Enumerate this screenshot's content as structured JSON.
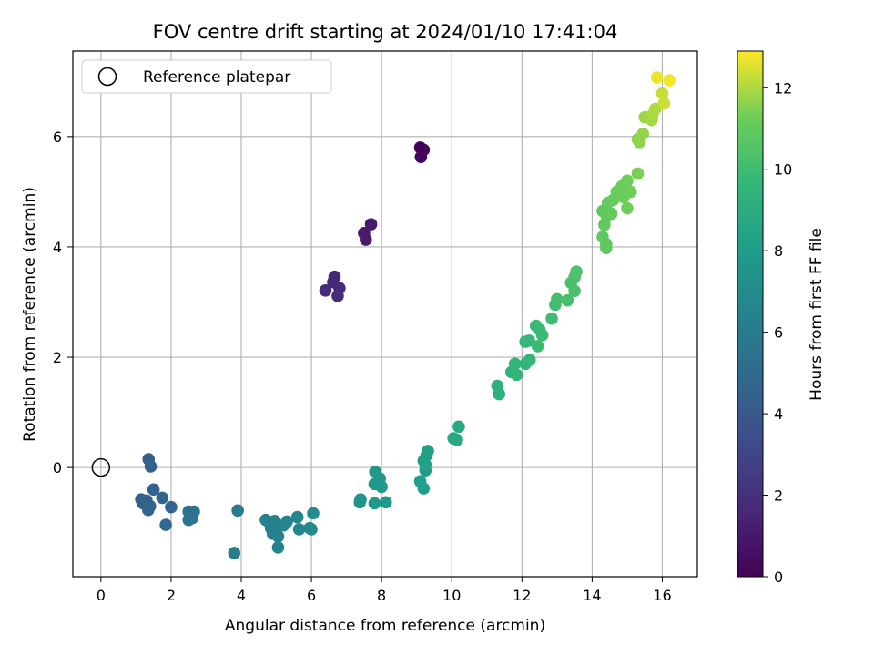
{
  "chart_data": {
    "type": "scatter",
    "title": "FOV centre drift starting at 2024/01/10 17:41:04",
    "xlabel": "Angular distance from reference (arcmin)",
    "ylabel": "Rotation from reference (arcmin)",
    "xlim": [
      -0.8,
      17.0
    ],
    "ylim": [
      -1.98,
      7.55
    ],
    "xticks": [
      0,
      2,
      4,
      6,
      8,
      10,
      12,
      14,
      16
    ],
    "yticks": [
      0,
      2,
      4,
      6
    ],
    "grid": true,
    "legend": {
      "placement": "upper-left",
      "entries": [
        "Reference platepar"
      ]
    },
    "reference_point": {
      "x": 0,
      "y": 0,
      "label": "Reference platepar"
    },
    "colorbar": {
      "label": "Hours from first FF file",
      "colormap": "viridis",
      "range": [
        0,
        12.9
      ],
      "ticks": [
        0,
        2,
        4,
        6,
        8,
        10,
        12
      ]
    },
    "points": [
      {
        "x": 9.1,
        "y": 5.8,
        "c": 0.1
      },
      {
        "x": 9.2,
        "y": 5.76,
        "c": 0.15
      },
      {
        "x": 9.12,
        "y": 5.63,
        "c": 0.2
      },
      {
        "x": 7.7,
        "y": 4.41,
        "c": 1.0
      },
      {
        "x": 7.5,
        "y": 4.25,
        "c": 1.05
      },
      {
        "x": 7.55,
        "y": 4.13,
        "c": 1.1
      },
      {
        "x": 6.66,
        "y": 3.46,
        "c": 1.6
      },
      {
        "x": 6.62,
        "y": 3.36,
        "c": 1.65
      },
      {
        "x": 6.8,
        "y": 3.25,
        "c": 1.7
      },
      {
        "x": 6.4,
        "y": 3.21,
        "c": 1.75
      },
      {
        "x": 6.75,
        "y": 3.11,
        "c": 1.8
      },
      {
        "x": 1.36,
        "y": 0.15,
        "c": 4.3
      },
      {
        "x": 1.42,
        "y": 0.02,
        "c": 4.35
      },
      {
        "x": 1.5,
        "y": -0.4,
        "c": 4.45
      },
      {
        "x": 1.15,
        "y": -0.58,
        "c": 4.5
      },
      {
        "x": 1.3,
        "y": -0.6,
        "c": 4.55
      },
      {
        "x": 1.2,
        "y": -0.65,
        "c": 4.55
      },
      {
        "x": 1.4,
        "y": -0.7,
        "c": 4.6
      },
      {
        "x": 1.35,
        "y": -0.77,
        "c": 4.6
      },
      {
        "x": 1.75,
        "y": -0.55,
        "c": 4.7
      },
      {
        "x": 2.0,
        "y": -0.72,
        "c": 4.8
      },
      {
        "x": 1.85,
        "y": -1.04,
        "c": 4.85
      },
      {
        "x": 2.5,
        "y": -0.8,
        "c": 5.3
      },
      {
        "x": 2.65,
        "y": -0.8,
        "c": 5.35
      },
      {
        "x": 2.55,
        "y": -0.88,
        "c": 5.4
      },
      {
        "x": 2.6,
        "y": -0.92,
        "c": 5.45
      },
      {
        "x": 2.5,
        "y": -0.95,
        "c": 5.5
      },
      {
        "x": 3.9,
        "y": -0.78,
        "c": 6.0
      },
      {
        "x": 3.8,
        "y": -1.55,
        "c": 6.05
      },
      {
        "x": 4.7,
        "y": -0.95,
        "c": 6.3
      },
      {
        "x": 4.8,
        "y": -1.0,
        "c": 6.35
      },
      {
        "x": 4.95,
        "y": -0.97,
        "c": 6.35
      },
      {
        "x": 4.85,
        "y": -1.1,
        "c": 6.4
      },
      {
        "x": 4.9,
        "y": -1.2,
        "c": 6.45
      },
      {
        "x": 5.0,
        "y": -1.1,
        "c": 6.45
      },
      {
        "x": 5.05,
        "y": -1.25,
        "c": 6.5
      },
      {
        "x": 5.05,
        "y": -1.45,
        "c": 6.5
      },
      {
        "x": 5.2,
        "y": -1.05,
        "c": 6.55
      },
      {
        "x": 5.3,
        "y": -0.98,
        "c": 6.6
      },
      {
        "x": 5.6,
        "y": -0.9,
        "c": 6.7
      },
      {
        "x": 5.65,
        "y": -1.12,
        "c": 6.75
      },
      {
        "x": 5.95,
        "y": -1.1,
        "c": 6.8
      },
      {
        "x": 6.0,
        "y": -1.12,
        "c": 6.85
      },
      {
        "x": 6.05,
        "y": -0.83,
        "c": 6.9
      },
      {
        "x": 7.4,
        "y": -0.58,
        "c": 7.5
      },
      {
        "x": 7.38,
        "y": -0.63,
        "c": 7.5
      },
      {
        "x": 7.82,
        "y": -0.08,
        "c": 7.7
      },
      {
        "x": 7.8,
        "y": -0.3,
        "c": 7.75
      },
      {
        "x": 7.95,
        "y": -0.2,
        "c": 7.75
      },
      {
        "x": 8.0,
        "y": -0.35,
        "c": 7.8
      },
      {
        "x": 7.8,
        "y": -0.65,
        "c": 7.8
      },
      {
        "x": 8.12,
        "y": -0.63,
        "c": 7.85
      },
      {
        "x": 9.1,
        "y": -0.25,
        "c": 8.1
      },
      {
        "x": 9.2,
        "y": -0.38,
        "c": 8.1
      },
      {
        "x": 9.25,
        "y": -0.05,
        "c": 8.15
      },
      {
        "x": 9.2,
        "y": 0.12,
        "c": 8.2
      },
      {
        "x": 9.28,
        "y": 0.22,
        "c": 8.2
      },
      {
        "x": 9.32,
        "y": 0.3,
        "c": 8.25
      },
      {
        "x": 9.25,
        "y": 0.05,
        "c": 8.25
      },
      {
        "x": 10.05,
        "y": 0.53,
        "c": 8.7
      },
      {
        "x": 10.15,
        "y": 0.5,
        "c": 8.75
      },
      {
        "x": 10.2,
        "y": 0.74,
        "c": 8.8
      },
      {
        "x": 11.3,
        "y": 1.48,
        "c": 9.2
      },
      {
        "x": 11.35,
        "y": 1.33,
        "c": 9.25
      },
      {
        "x": 11.7,
        "y": 1.73,
        "c": 9.4
      },
      {
        "x": 11.8,
        "y": 1.88,
        "c": 9.45
      },
      {
        "x": 11.85,
        "y": 1.68,
        "c": 9.5
      },
      {
        "x": 12.1,
        "y": 1.88,
        "c": 9.55
      },
      {
        "x": 12.1,
        "y": 2.28,
        "c": 9.6
      },
      {
        "x": 12.22,
        "y": 1.95,
        "c": 9.6
      },
      {
        "x": 12.2,
        "y": 2.3,
        "c": 9.65
      },
      {
        "x": 12.4,
        "y": 2.57,
        "c": 9.8
      },
      {
        "x": 12.5,
        "y": 2.5,
        "c": 9.85
      },
      {
        "x": 12.45,
        "y": 2.2,
        "c": 9.85
      },
      {
        "x": 12.58,
        "y": 2.4,
        "c": 9.9
      },
      {
        "x": 12.85,
        "y": 2.7,
        "c": 10.0
      },
      {
        "x": 12.95,
        "y": 2.95,
        "c": 10.05
      },
      {
        "x": 13.0,
        "y": 3.05,
        "c": 10.1
      },
      {
        "x": 13.3,
        "y": 3.03,
        "c": 10.2
      },
      {
        "x": 13.4,
        "y": 3.35,
        "c": 10.25
      },
      {
        "x": 13.5,
        "y": 3.2,
        "c": 10.3
      },
      {
        "x": 13.5,
        "y": 3.45,
        "c": 10.3
      },
      {
        "x": 13.55,
        "y": 3.55,
        "c": 10.35
      },
      {
        "x": 14.3,
        "y": 4.65,
        "c": 10.8
      },
      {
        "x": 14.35,
        "y": 4.4,
        "c": 10.85
      },
      {
        "x": 14.3,
        "y": 4.18,
        "c": 10.85
      },
      {
        "x": 14.4,
        "y": 4.05,
        "c": 10.9
      },
      {
        "x": 14.4,
        "y": 3.98,
        "c": 10.9
      },
      {
        "x": 14.42,
        "y": 4.55,
        "c": 10.95
      },
      {
        "x": 14.45,
        "y": 4.8,
        "c": 10.95
      },
      {
        "x": 14.55,
        "y": 4.6,
        "c": 11.0
      },
      {
        "x": 14.6,
        "y": 4.85,
        "c": 11.05
      },
      {
        "x": 14.7,
        "y": 5.0,
        "c": 11.1
      },
      {
        "x": 14.85,
        "y": 5.1,
        "c": 11.15
      },
      {
        "x": 14.9,
        "y": 4.9,
        "c": 11.2
      },
      {
        "x": 15.0,
        "y": 5.2,
        "c": 11.25
      },
      {
        "x": 15.0,
        "y": 4.7,
        "c": 11.25
      },
      {
        "x": 15.1,
        "y": 5.0,
        "c": 11.3
      },
      {
        "x": 15.3,
        "y": 5.33,
        "c": 11.4
      },
      {
        "x": 15.3,
        "y": 5.95,
        "c": 11.6
      },
      {
        "x": 15.35,
        "y": 5.9,
        "c": 11.65
      },
      {
        "x": 15.45,
        "y": 6.05,
        "c": 11.7
      },
      {
        "x": 15.5,
        "y": 6.35,
        "c": 11.8
      },
      {
        "x": 15.7,
        "y": 6.3,
        "c": 11.9
      },
      {
        "x": 15.72,
        "y": 6.4,
        "c": 11.95
      },
      {
        "x": 15.8,
        "y": 6.5,
        "c": 12.0
      },
      {
        "x": 16.0,
        "y": 6.78,
        "c": 12.3
      },
      {
        "x": 16.05,
        "y": 6.6,
        "c": 12.35
      },
      {
        "x": 15.85,
        "y": 7.07,
        "c": 12.7
      },
      {
        "x": 16.2,
        "y": 7.02,
        "c": 12.8
      }
    ]
  }
}
